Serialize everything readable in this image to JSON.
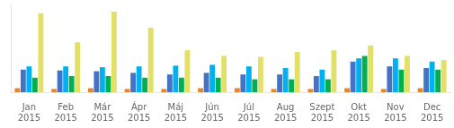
{
  "chart_data": {
    "type": "bar",
    "categories": [
      [
        "Jan",
        "2015"
      ],
      [
        "Feb",
        "2015"
      ],
      [
        "Már",
        "2015"
      ],
      [
        "Ápr",
        "2015"
      ],
      [
        "Máj",
        "2015"
      ],
      [
        "Jún",
        "2015"
      ],
      [
        "Júl",
        "2015"
      ],
      [
        "Aug",
        "2015"
      ],
      [
        "Szept",
        "2015"
      ],
      [
        "Okt",
        "2015"
      ],
      [
        "Nov",
        "2015"
      ],
      [
        "Dec",
        "2015"
      ]
    ],
    "series": [
      {
        "color": "#E8842C",
        "values": [
          5,
          4,
          5,
          4,
          4,
          5,
          5,
          4,
          4,
          5,
          4,
          5
        ]
      },
      {
        "color": "#4472C4",
        "values": [
          28,
          27,
          26,
          24,
          22,
          24,
          22,
          22,
          20,
          38,
          32,
          30
        ]
      },
      {
        "color": "#00B0F0",
        "values": [
          32,
          32,
          31,
          32,
          33,
          34,
          32,
          30,
          28,
          42,
          42,
          38
        ]
      },
      {
        "color": "#00B050",
        "values": [
          18,
          20,
          20,
          18,
          18,
          18,
          16,
          16,
          16,
          45,
          28,
          28
        ]
      },
      {
        "color": "#E2E066",
        "values": [
          98,
          62,
          100,
          80,
          52,
          45,
          44,
          50,
          52,
          58,
          45,
          40
        ]
      }
    ],
    "ylim": [
      0,
      110
    ],
    "grid": false,
    "tick_labels": "x"
  }
}
